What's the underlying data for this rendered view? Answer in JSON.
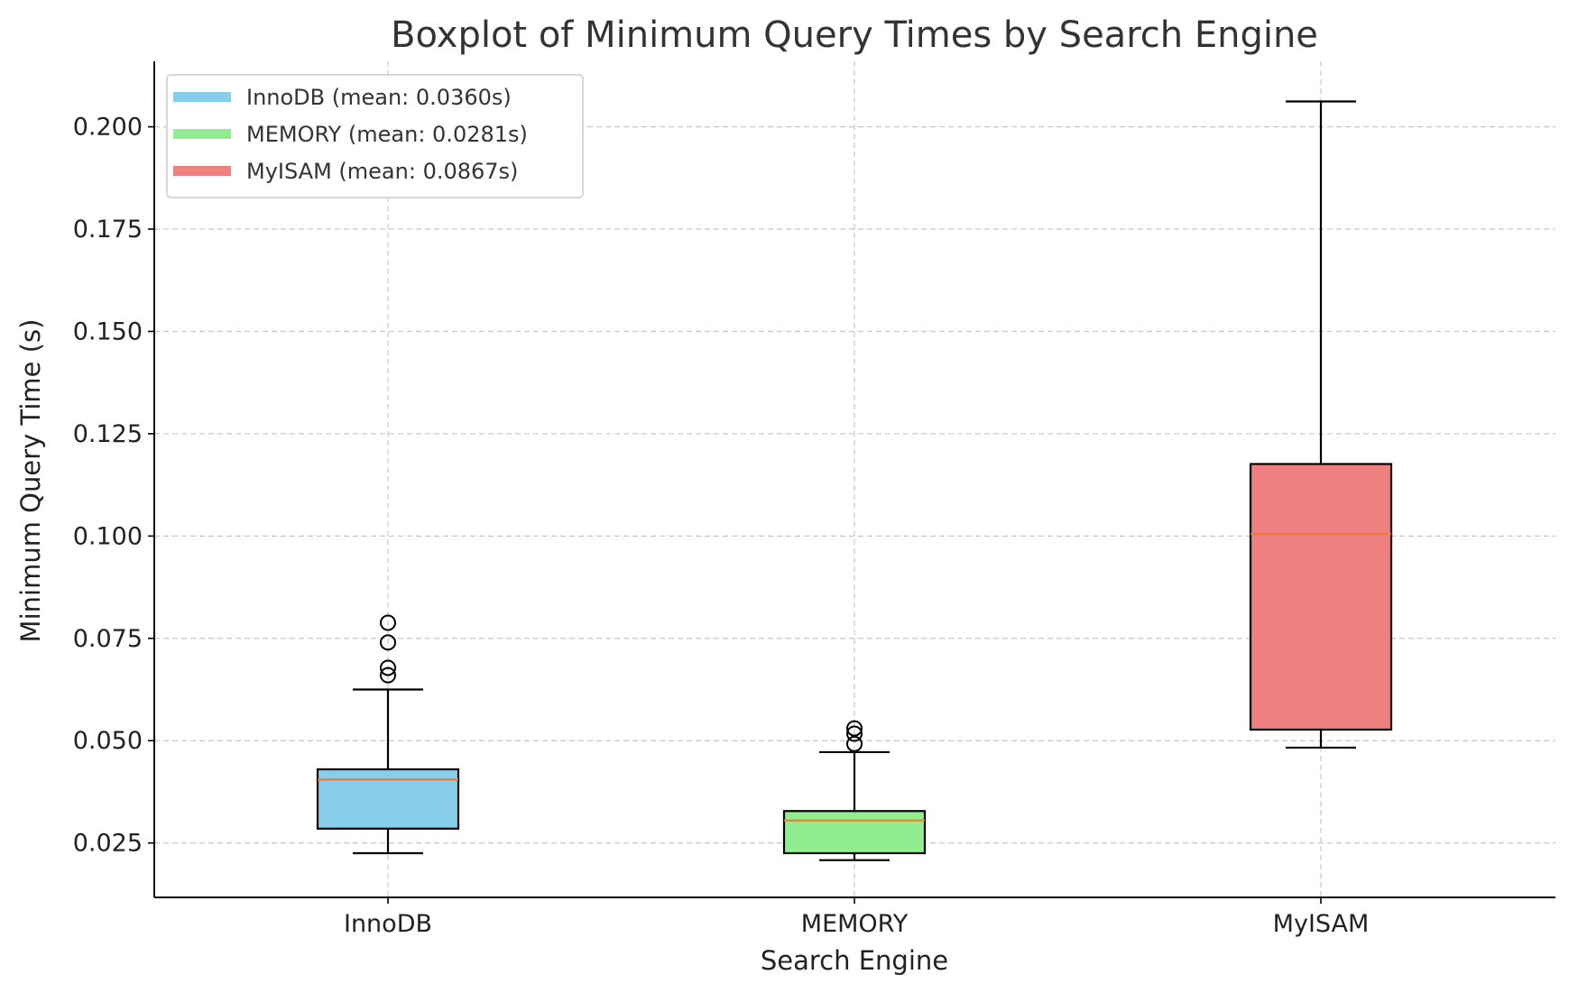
{
  "chart_data": {
    "type": "box",
    "title": "Boxplot of Minimum Query Times by Search Engine",
    "xlabel": "Search Engine",
    "ylabel": "Minimum Query Time (s)",
    "ylim": [
      0.0117,
      0.216
    ],
    "yticks": [
      0.025,
      0.05,
      0.075,
      0.1,
      0.125,
      0.15,
      0.175,
      0.2
    ],
    "ytick_labels": [
      "0.025",
      "0.050",
      "0.075",
      "0.100",
      "0.125",
      "0.150",
      "0.175",
      "0.200"
    ],
    "grid": true,
    "legend_position": "top-left",
    "categories": [
      "InnoDB",
      "MEMORY",
      "MyISAM"
    ],
    "series": [
      {
        "name": "InnoDB",
        "legend_label": "InnoDB (mean: 0.0360s)",
        "color": "#87ceeb",
        "whisker_low": 0.0225,
        "q1": 0.0285,
        "median": 0.0405,
        "q3": 0.043,
        "whisker_high": 0.0625,
        "outliers": [
          0.066,
          0.0678,
          0.074,
          0.0788
        ]
      },
      {
        "name": "MEMORY",
        "legend_label": "MEMORY (mean: 0.0281s)",
        "color": "#90ee90",
        "whisker_low": 0.0208,
        "q1": 0.0225,
        "median": 0.0305,
        "q3": 0.0328,
        "whisker_high": 0.0472,
        "outliers": [
          0.0492,
          0.0517,
          0.053
        ]
      },
      {
        "name": "MyISAM",
        "legend_label": "MyISAM (mean: 0.0867s)",
        "color": "#f08080",
        "whisker_low": 0.0483,
        "q1": 0.0527,
        "median": 0.1005,
        "q3": 0.1176,
        "whisker_high": 0.2062,
        "outliers": []
      }
    ],
    "median_color": "#f07a2a"
  }
}
